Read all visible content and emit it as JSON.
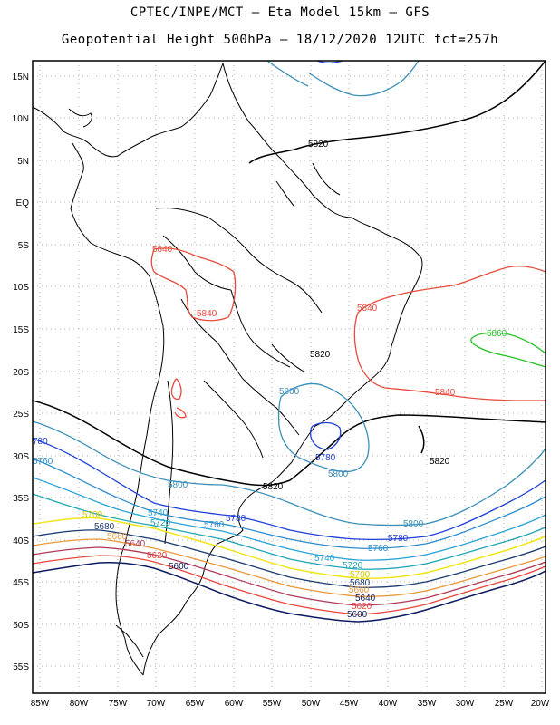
{
  "title_line1": "CPTEC/INPE/MCT –  Eta Model 15km – GFS",
  "title_line2": "Geopotential Height 500hPa – 18/12/2020 12UTC fct=257h",
  "lat_ticks": [
    "15N",
    "10N",
    "5N",
    "EQ",
    "5S",
    "10S",
    "15S",
    "20S",
    "25S",
    "30S",
    "35S",
    "40S",
    "45S",
    "50S",
    "55S"
  ],
  "lon_ticks": [
    "85W",
    "80W",
    "75W",
    "70W",
    "65W",
    "60W",
    "55W",
    "50W",
    "45W",
    "40W",
    "35W",
    "30W",
    "25W",
    "20W"
  ],
  "contour_labels": {
    "c5820_a": "5820",
    "c5820_b": "5820",
    "c5820_c": "5820",
    "c5820_d": "5820",
    "c5840_a": "5840",
    "c5840_b": "5840",
    "c5840_c": "5840",
    "c5840_d": "5840",
    "c5860_a": "5860",
    "c5800_a": "5800",
    "c5800_b": "5800",
    "c5800_c": "5800",
    "c5800_d": "5800",
    "c5780_a": "5780",
    "c5780_b": "5780",
    "c5780_c": "5780",
    "c5780_left": "780",
    "c5760_a": "5760",
    "c5760_b": "5760",
    "c5760_left": "5760",
    "c5740_a": "5740",
    "c5740_b": "5740",
    "c5720_a": "5720",
    "c5720_b": "5720",
    "c5700_a": "5700",
    "c5700_b": "5700",
    "c5680_a": "5680",
    "c5680_b": "5680",
    "c5660_a": "5660",
    "c5660_b": "5660",
    "c5640_a": "5640",
    "c5640_b": "5640",
    "c5620_a": "5620",
    "c5620_b": "5620",
    "c5600_a": "5600",
    "c5600_b": "5600"
  },
  "colors": {
    "c5860": "#22c322",
    "c5840": "#e84a3c",
    "c5820": "#000000",
    "c5800": "#3b8fb8",
    "c5780": "#1f3fd6",
    "c5760": "#2d8ccc",
    "c5740": "#2aa4d8",
    "c5720": "#1fa6b4",
    "c5700": "#f1e61a",
    "c5680": "#1a3a6e",
    "c5660": "#e89a3a",
    "c5640": "#b03a56",
    "c5620": "#e8453c",
    "c5600": "#0d1a60",
    "coast": "#000000",
    "grid": "#b0b0b0"
  }
}
